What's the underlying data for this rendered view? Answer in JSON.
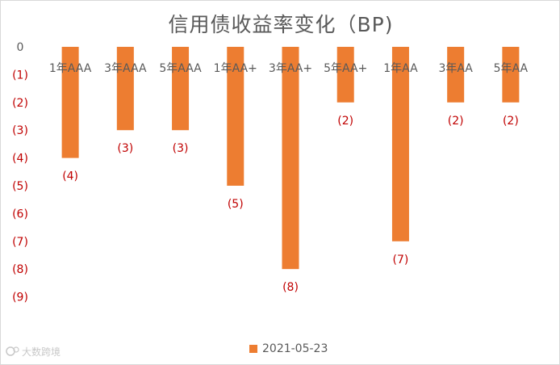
{
  "chart_data": {
    "type": "bar",
    "title": "信用债收益率变化（BP)",
    "categories": [
      "1年AAA",
      "3年AAA",
      "5年AAA",
      "1年AA+",
      "3年AA+",
      "5年AA+",
      "1年AA",
      "3年AA",
      "5年AA"
    ],
    "series": [
      {
        "name": "2021-05-23",
        "values": [
          -4,
          -3,
          -3,
          -5,
          -8,
          -2,
          -7,
          -2,
          -2
        ]
      }
    ],
    "data_labels": [
      "(4)",
      "(3)",
      "(3)",
      "(5)",
      "(8)",
      "(2)",
      "(7)",
      "(2)",
      "(2)"
    ],
    "y_tick_labels": [
      "0",
      "(1)",
      "(2)",
      "(3)",
      "(4)",
      "(5)",
      "(6)",
      "(7)",
      "(8)",
      "(9)"
    ],
    "ylim": [
      -9,
      0
    ],
    "grid": false,
    "legend_position": "bottom",
    "colors": {
      "bar": "#ED7D31",
      "negative_label": "#C00000",
      "axis_text": "#595959"
    }
  },
  "watermark": "大数跨境"
}
